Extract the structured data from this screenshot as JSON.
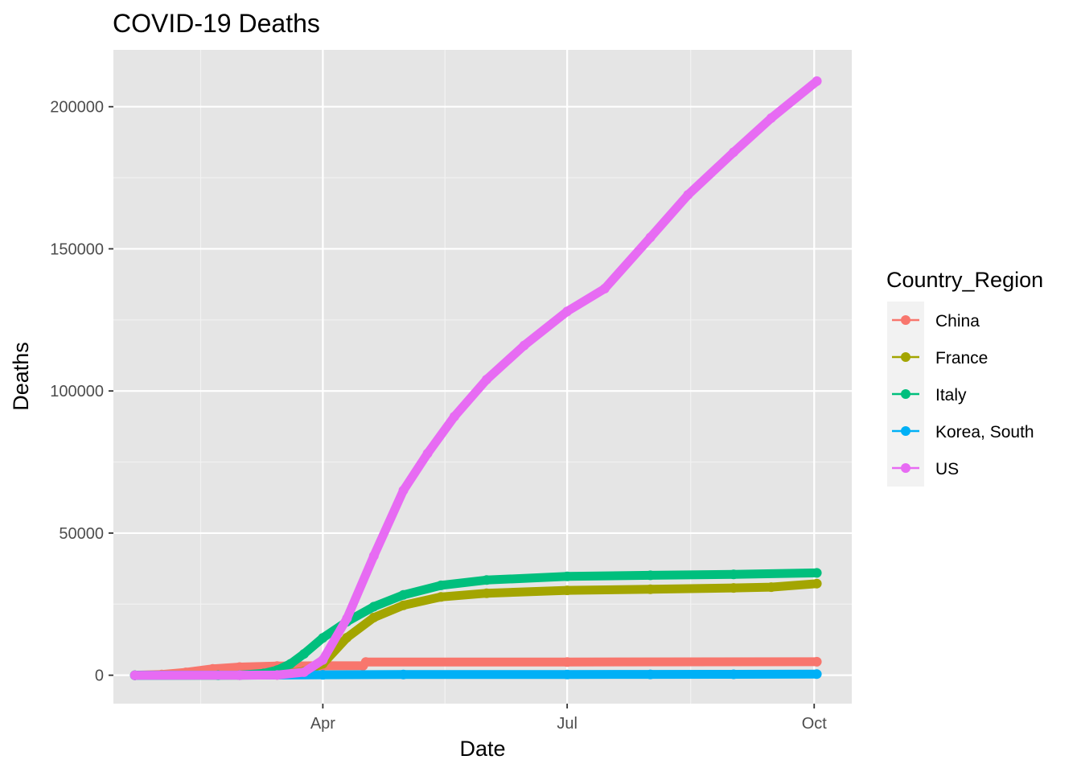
{
  "chart_data": {
    "type": "line",
    "title": "COVID-19 Deaths",
    "xlabel": "Date",
    "ylabel": "Deaths",
    "legend_title": "Country_Region",
    "legend_position": "right",
    "grid": true,
    "panel_background": "#e5e5e5",
    "x_range": [
      "2020-01-22",
      "2020-10-02"
    ],
    "ylim": [
      -10000,
      220000
    ],
    "x_ticks": [
      {
        "date": "2020-04-01",
        "label": "Apr"
      },
      {
        "date": "2020-07-01",
        "label": "Jul"
      },
      {
        "date": "2020-10-01",
        "label": "Oct"
      }
    ],
    "y_ticks": [
      0,
      50000,
      100000,
      150000,
      200000
    ],
    "series": [
      {
        "name": "China",
        "color": "#F8766D",
        "points": [
          [
            "2020-01-22",
            17
          ],
          [
            "2020-02-01",
            259
          ],
          [
            "2020-02-10",
            1013
          ],
          [
            "2020-02-20",
            2236
          ],
          [
            "2020-03-01",
            2870
          ],
          [
            "2020-03-15",
            3199
          ],
          [
            "2020-04-01",
            3312
          ],
          [
            "2020-04-16",
            3342
          ],
          [
            "2020-04-17",
            4632
          ],
          [
            "2020-07-01",
            4641
          ],
          [
            "2020-10-02",
            4739
          ]
        ]
      },
      {
        "name": "France",
        "color": "#A3A500",
        "points": [
          [
            "2020-01-22",
            0
          ],
          [
            "2020-03-01",
            2
          ],
          [
            "2020-03-15",
            91
          ],
          [
            "2020-03-25",
            1333
          ],
          [
            "2020-04-01",
            4043
          ],
          [
            "2020-04-10",
            13215
          ],
          [
            "2020-04-20",
            20292
          ],
          [
            "2020-05-01",
            24594
          ],
          [
            "2020-05-15",
            27532
          ],
          [
            "2020-06-01",
            28833
          ],
          [
            "2020-07-01",
            29875
          ],
          [
            "2020-08-01",
            30268
          ],
          [
            "2020-09-01",
            30706
          ],
          [
            "2020-09-15",
            31000
          ],
          [
            "2020-10-02",
            32200
          ]
        ]
      },
      {
        "name": "Italy",
        "color": "#00BF7D",
        "points": [
          [
            "2020-01-22",
            0
          ],
          [
            "2020-02-22",
            2
          ],
          [
            "2020-03-01",
            34
          ],
          [
            "2020-03-10",
            631
          ],
          [
            "2020-03-15",
            1809
          ],
          [
            "2020-03-20",
            4032
          ],
          [
            "2020-03-25",
            7503
          ],
          [
            "2020-04-01",
            13155
          ],
          [
            "2020-04-10",
            18849
          ],
          [
            "2020-04-20",
            24114
          ],
          [
            "2020-05-01",
            28236
          ],
          [
            "2020-05-15",
            31610
          ],
          [
            "2020-06-01",
            33475
          ],
          [
            "2020-07-01",
            34767
          ],
          [
            "2020-08-01",
            35146
          ],
          [
            "2020-09-01",
            35483
          ],
          [
            "2020-10-02",
            35986
          ]
        ]
      },
      {
        "name": "Korea, South",
        "color": "#00B0F6",
        "points": [
          [
            "2020-01-22",
            0
          ],
          [
            "2020-03-01",
            17
          ],
          [
            "2020-04-01",
            165
          ],
          [
            "2020-05-01",
            248
          ],
          [
            "2020-07-01",
            282
          ],
          [
            "2020-08-01",
            301
          ],
          [
            "2020-09-01",
            324
          ],
          [
            "2020-10-02",
            415
          ]
        ]
      },
      {
        "name": "US",
        "color": "#E76BF3",
        "points": [
          [
            "2020-01-22",
            0
          ],
          [
            "2020-03-01",
            1
          ],
          [
            "2020-03-15",
            68
          ],
          [
            "2020-03-25",
            1072
          ],
          [
            "2020-04-01",
            5400
          ],
          [
            "2020-04-10",
            20000
          ],
          [
            "2020-04-20",
            42000
          ],
          [
            "2020-05-01",
            65000
          ],
          [
            "2020-05-10",
            78000
          ],
          [
            "2020-05-20",
            91000
          ],
          [
            "2020-06-01",
            104000
          ],
          [
            "2020-06-15",
            116000
          ],
          [
            "2020-07-01",
            128000
          ],
          [
            "2020-07-15",
            136000
          ],
          [
            "2020-08-01",
            154000
          ],
          [
            "2020-08-15",
            169000
          ],
          [
            "2020-09-01",
            184000
          ],
          [
            "2020-09-15",
            196000
          ],
          [
            "2020-10-02",
            209000
          ]
        ]
      }
    ]
  }
}
